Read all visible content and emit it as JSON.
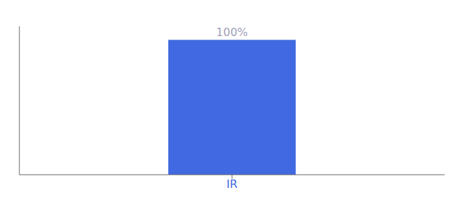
{
  "chart_data": {
    "type": "bar",
    "categories": [
      "IR"
    ],
    "values": [
      100
    ],
    "value_labels": [
      "100%"
    ],
    "data_labels": true,
    "color": "#4169e1",
    "ylim": [
      0,
      110
    ],
    "grid": false,
    "tick_labels": "x"
  }
}
